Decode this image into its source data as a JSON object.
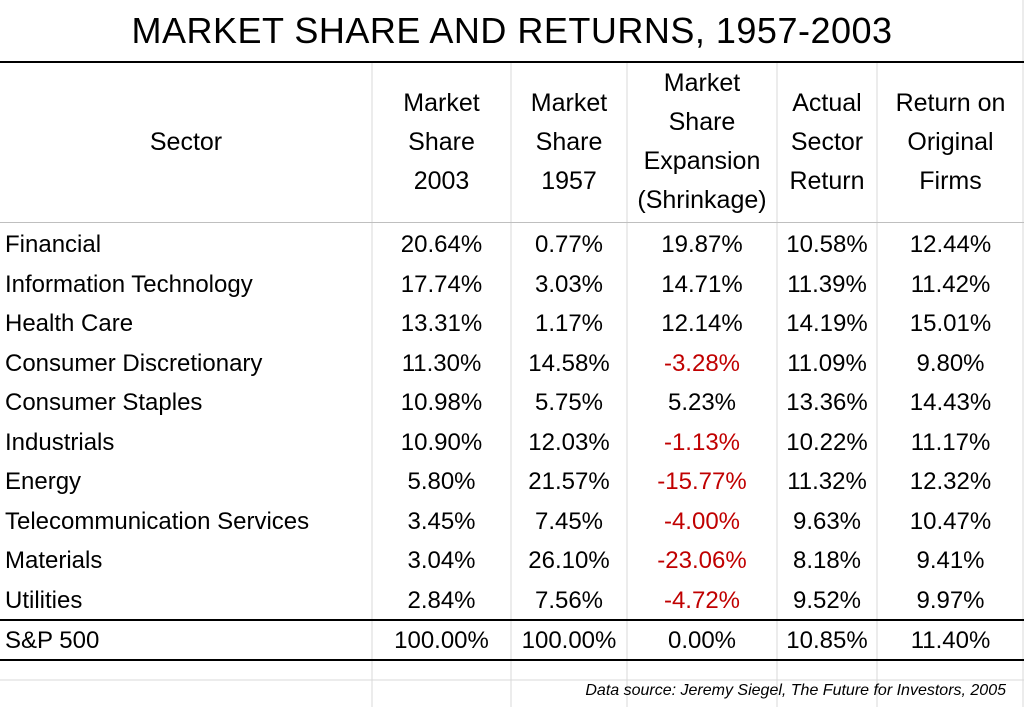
{
  "title": "MARKET SHARE AND RETURNS, 1957-2003",
  "columns": [
    {
      "lines": [
        "Sector"
      ]
    },
    {
      "lines": [
        "Market",
        "Share",
        "2003"
      ]
    },
    {
      "lines": [
        "Market",
        "Share",
        "1957"
      ]
    },
    {
      "lines": [
        "Market",
        "Share",
        "Expansion",
        "(Shrinkage)"
      ]
    },
    {
      "lines": [
        "Actual",
        "Sector",
        "Return"
      ]
    },
    {
      "lines": [
        "Return on",
        "Original",
        "Firms"
      ]
    }
  ],
  "rows": [
    {
      "sector": "Financial",
      "share_2003": "20.64%",
      "share_1957": "0.77%",
      "expansion": "19.87%",
      "expansion_negative": false,
      "actual_return": "10.58%",
      "original_return": "12.44%"
    },
    {
      "sector": "Information Technology",
      "share_2003": "17.74%",
      "share_1957": "3.03%",
      "expansion": "14.71%",
      "expansion_negative": false,
      "actual_return": "11.39%",
      "original_return": "11.42%"
    },
    {
      "sector": "Health Care",
      "share_2003": "13.31%",
      "share_1957": "1.17%",
      "expansion": "12.14%",
      "expansion_negative": false,
      "actual_return": "14.19%",
      "original_return": "15.01%"
    },
    {
      "sector": "Consumer Discretionary",
      "share_2003": "11.30%",
      "share_1957": "14.58%",
      "expansion": "-3.28%",
      "expansion_negative": true,
      "actual_return": "11.09%",
      "original_return": "9.80%"
    },
    {
      "sector": "Consumer Staples",
      "share_2003": "10.98%",
      "share_1957": "5.75%",
      "expansion": "5.23%",
      "expansion_negative": false,
      "actual_return": "13.36%",
      "original_return": "14.43%"
    },
    {
      "sector": "Industrials",
      "share_2003": "10.90%",
      "share_1957": "12.03%",
      "expansion": "-1.13%",
      "expansion_negative": true,
      "actual_return": "10.22%",
      "original_return": "11.17%"
    },
    {
      "sector": "Energy",
      "share_2003": "5.80%",
      "share_1957": "21.57%",
      "expansion": "-15.77%",
      "expansion_negative": true,
      "actual_return": "11.32%",
      "original_return": "12.32%"
    },
    {
      "sector": "Telecommunication Services",
      "share_2003": "3.45%",
      "share_1957": "7.45%",
      "expansion": "-4.00%",
      "expansion_negative": true,
      "actual_return": "9.63%",
      "original_return": "10.47%"
    },
    {
      "sector": "Materials",
      "share_2003": "3.04%",
      "share_1957": "26.10%",
      "expansion": "-23.06%",
      "expansion_negative": true,
      "actual_return": "8.18%",
      "original_return": "9.41%"
    },
    {
      "sector": "Utilities",
      "share_2003": "2.84%",
      "share_1957": "7.56%",
      "expansion": "-4.72%",
      "expansion_negative": true,
      "actual_return": "9.52%",
      "original_return": "9.97%"
    }
  ],
  "total": {
    "sector": "S&P 500",
    "share_2003": "100.00%",
    "share_1957": "100.00%",
    "expansion": "0.00%",
    "expansion_negative": false,
    "actual_return": "10.85%",
    "original_return": "11.40%"
  },
  "source": "Data source: Jeremy Siegel, The Future for Investors, 2005",
  "colors": {
    "negative": "#c00000",
    "gridline": "#d9d9d9",
    "text": "#000000"
  }
}
